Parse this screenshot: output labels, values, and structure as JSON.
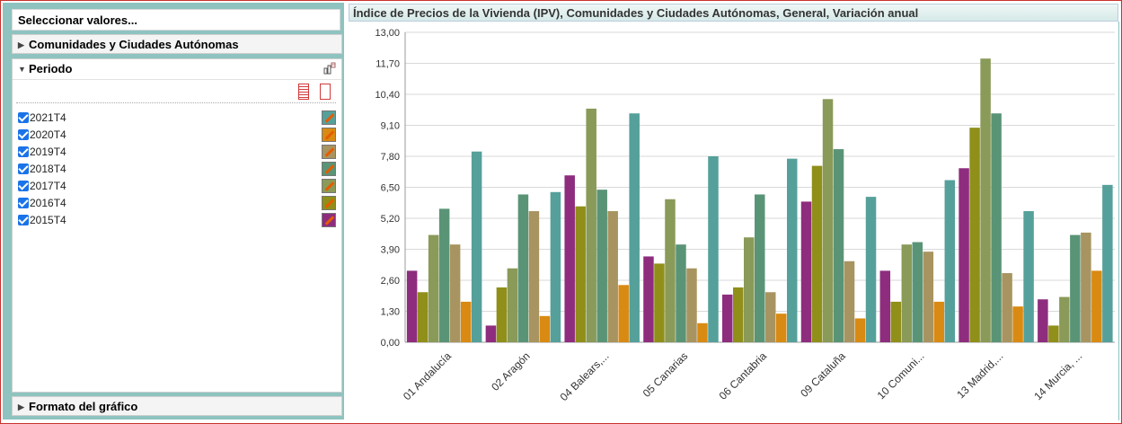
{
  "left_panel": {
    "header": "Seleccionar valores...",
    "section_ccaa": "Comunidades y Ciudades Autónomas",
    "section_periodo": "Periodo",
    "section_formato": "Formato del gráfico",
    "periods": [
      {
        "label": "2021T4",
        "checked": true,
        "color": "#55a09a"
      },
      {
        "label": "2020T4",
        "checked": true,
        "color": "#d98a12"
      },
      {
        "label": "2019T4",
        "checked": true,
        "color": "#a89460"
      },
      {
        "label": "2018T4",
        "checked": true,
        "color": "#5a9476"
      },
      {
        "label": "2017T4",
        "checked": true,
        "color": "#8a9a58"
      },
      {
        "label": "2016T4",
        "checked": true,
        "color": "#8f8f1a"
      },
      {
        "label": "2015T4",
        "checked": true,
        "color": "#8e2d7e"
      }
    ]
  },
  "chart_data": {
    "type": "bar",
    "title": "Índice de Precios de la Vivienda (IPV), Comunidades y Ciudades Autónomas, General, Variación anual",
    "categories": [
      "01 Andalucía",
      "02 Aragón",
      "04 Balears,...",
      "05 Canarias",
      "06 Cantabria",
      "09 Cataluña",
      "10 Comuni...",
      "13 Madrid,...",
      "14 Murcia, ..."
    ],
    "yticks": [
      "0,00",
      "1,30",
      "2,60",
      "3,90",
      "5,20",
      "6,50",
      "7,80",
      "9,10",
      "10,40",
      "11,70",
      "13,00"
    ],
    "ylim": [
      0,
      13
    ],
    "grid": true,
    "series": [
      {
        "name": "2015T4",
        "color": "#8e2d7e",
        "values": [
          3.0,
          0.7,
          7.0,
          3.6,
          2.0,
          5.9,
          3.0,
          7.3,
          1.8
        ]
      },
      {
        "name": "2016T4",
        "color": "#8f8f1a",
        "values": [
          2.1,
          2.3,
          5.7,
          3.3,
          2.3,
          7.4,
          1.7,
          9.0,
          0.7
        ]
      },
      {
        "name": "2017T4",
        "color": "#8a9a58",
        "values": [
          4.5,
          3.1,
          9.8,
          6.0,
          4.4,
          10.2,
          4.1,
          11.9,
          1.9
        ]
      },
      {
        "name": "2018T4",
        "color": "#5a9476",
        "values": [
          5.6,
          6.2,
          6.4,
          4.1,
          6.2,
          8.1,
          4.2,
          9.6,
          4.5
        ]
      },
      {
        "name": "2019T4",
        "color": "#a89460",
        "values": [
          4.1,
          5.5,
          5.5,
          3.1,
          2.1,
          3.4,
          3.8,
          2.9,
          4.6
        ]
      },
      {
        "name": "2020T4",
        "color": "#d98a12",
        "values": [
          1.7,
          1.1,
          2.4,
          0.8,
          1.2,
          1.0,
          1.7,
          1.5,
          3.0
        ]
      },
      {
        "name": "2021T4",
        "color": "#55a09a",
        "values": [
          8.0,
          6.3,
          9.6,
          7.8,
          7.7,
          6.1,
          6.8,
          5.5,
          6.6
        ]
      }
    ]
  }
}
